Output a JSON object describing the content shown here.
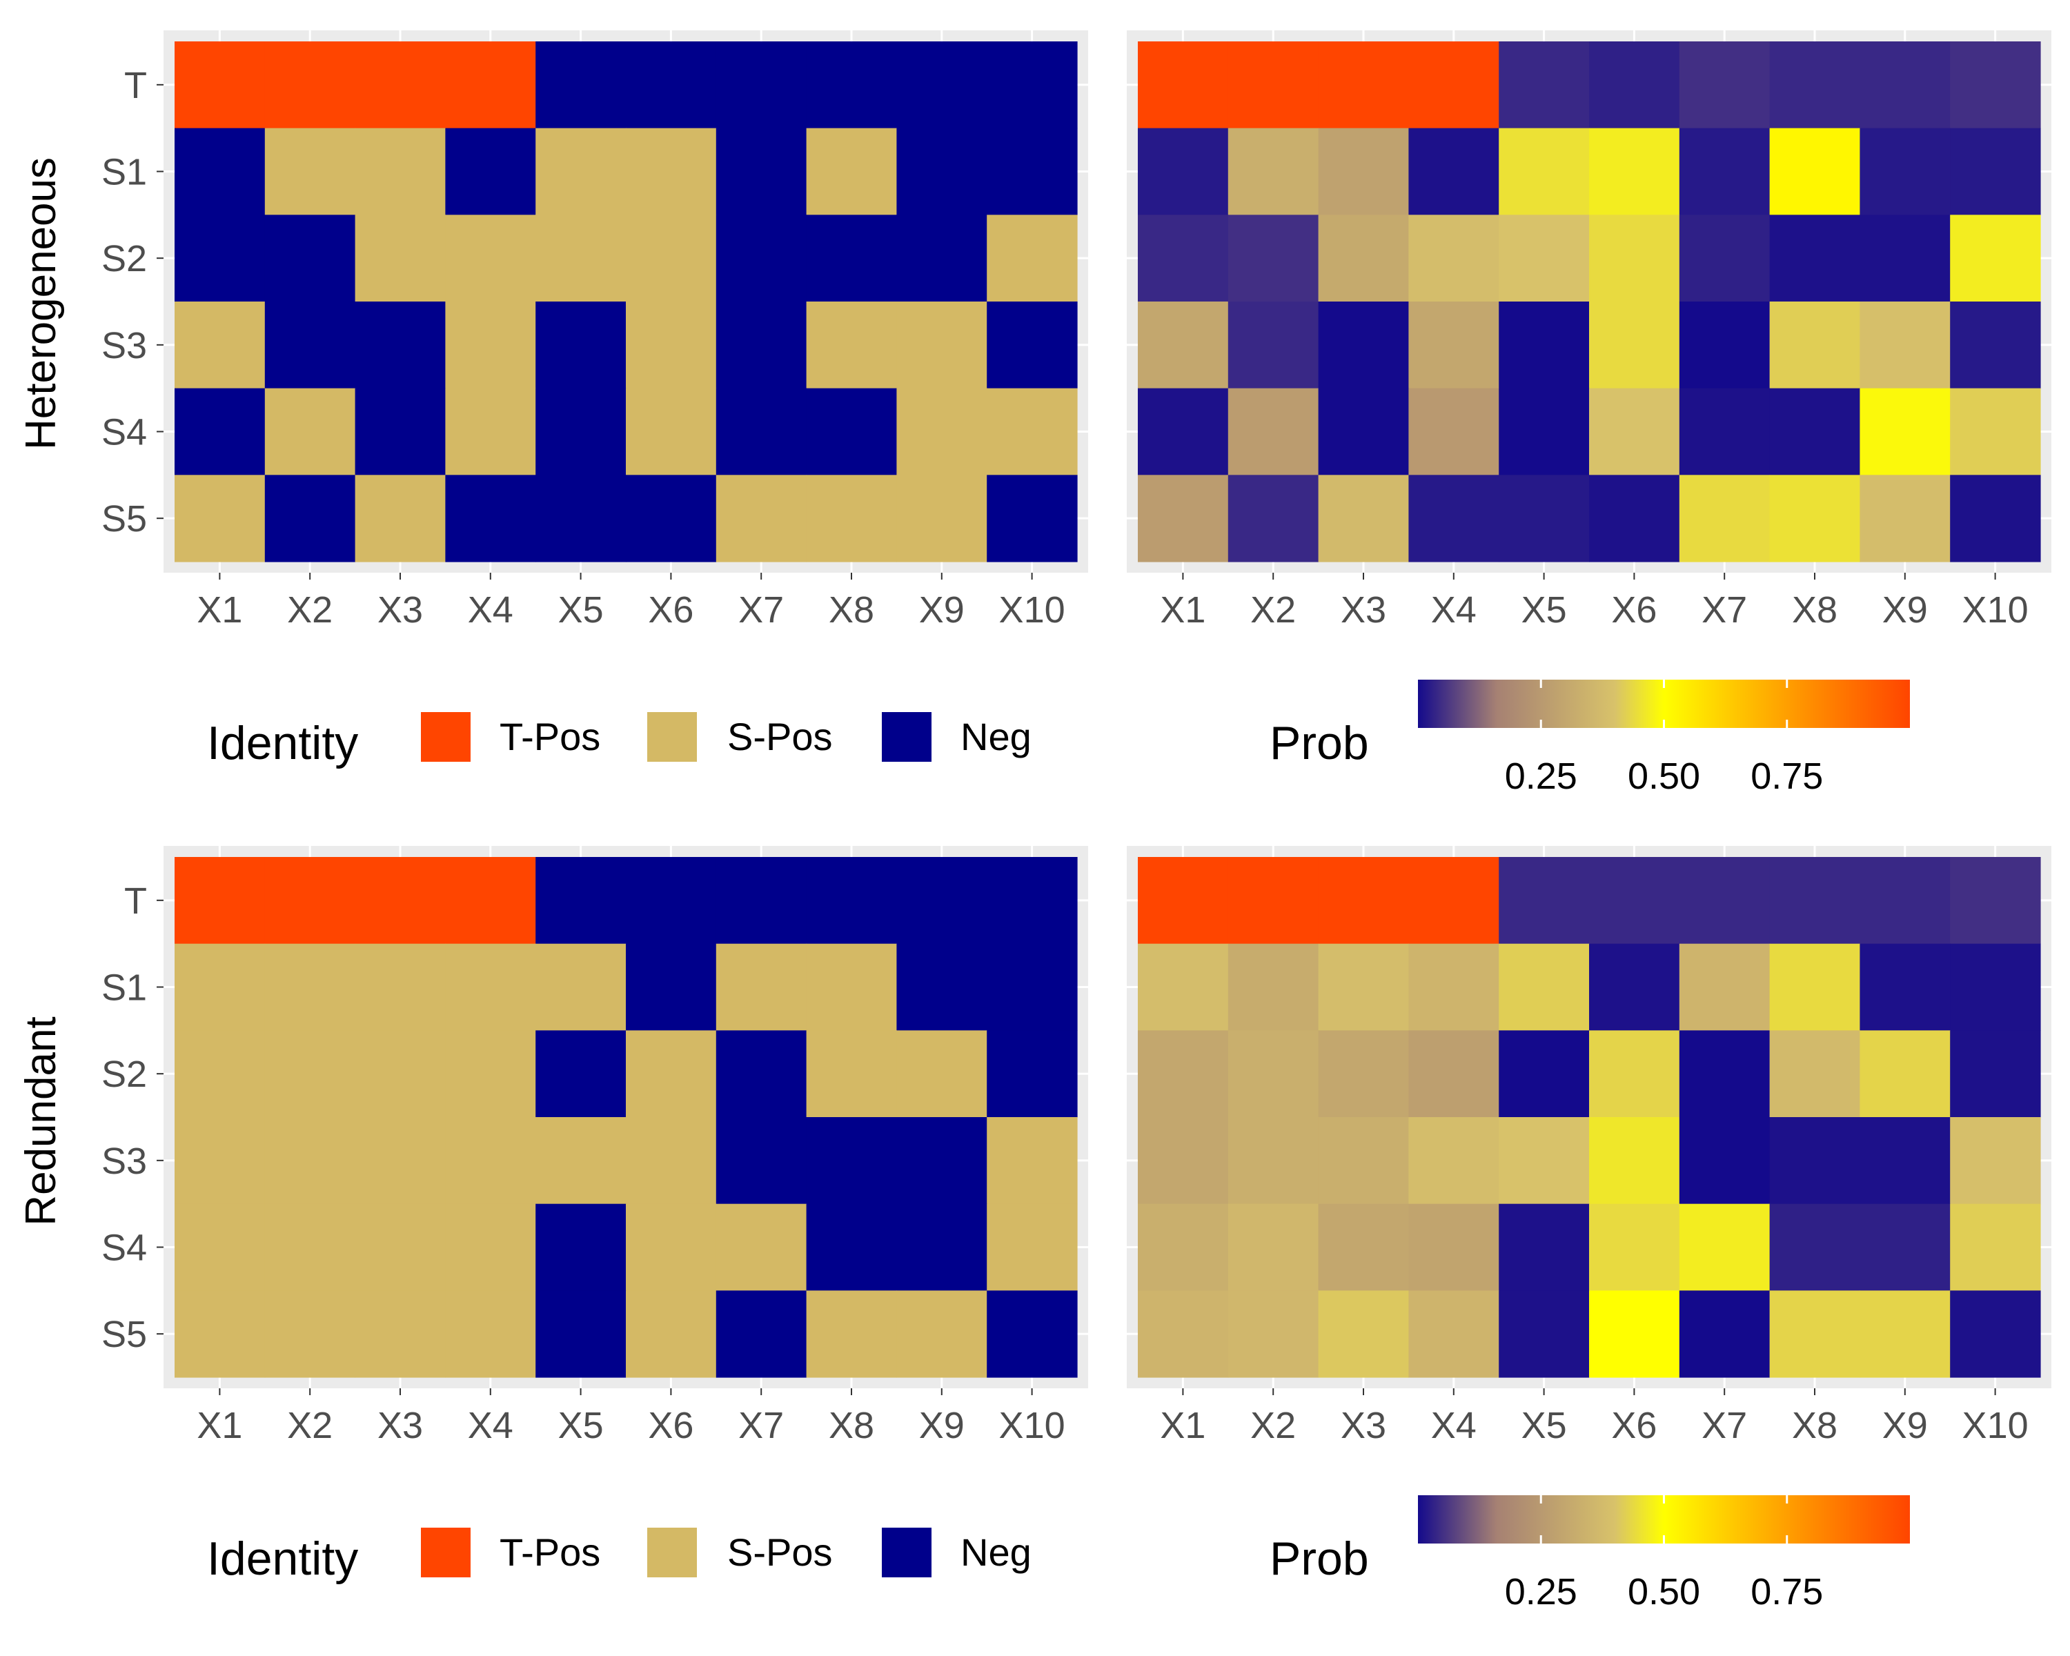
{
  "chart_data": [
    {
      "type": "heatmap",
      "row_group": "Heterogeneous",
      "fill": "Identity",
      "categories_x": [
        "X1",
        "X2",
        "X3",
        "X4",
        "X5",
        "X6",
        "X7",
        "X8",
        "X9",
        "X10"
      ],
      "categories_y": [
        "T",
        "S1",
        "S2",
        "S3",
        "S4",
        "S5"
      ],
      "values": [
        [
          "T-Pos",
          "T-Pos",
          "T-Pos",
          "T-Pos",
          "Neg",
          "Neg",
          "Neg",
          "Neg",
          "Neg",
          "Neg"
        ],
        [
          "Neg",
          "S-Pos",
          "S-Pos",
          "Neg",
          "S-Pos",
          "S-Pos",
          "Neg",
          "S-Pos",
          "Neg",
          "Neg"
        ],
        [
          "Neg",
          "Neg",
          "S-Pos",
          "S-Pos",
          "S-Pos",
          "S-Pos",
          "Neg",
          "Neg",
          "Neg",
          "S-Pos"
        ],
        [
          "S-Pos",
          "Neg",
          "Neg",
          "S-Pos",
          "Neg",
          "S-Pos",
          "Neg",
          "S-Pos",
          "S-Pos",
          "Neg"
        ],
        [
          "Neg",
          "S-Pos",
          "Neg",
          "S-Pos",
          "Neg",
          "S-Pos",
          "Neg",
          "Neg",
          "S-Pos",
          "S-Pos"
        ],
        [
          "S-Pos",
          "Neg",
          "S-Pos",
          "Neg",
          "Neg",
          "Neg",
          "S-Pos",
          "S-Pos",
          "S-Pos",
          "Neg"
        ]
      ],
      "legend": {
        "title": "Identity",
        "entries": [
          "T-Pos",
          "S-Pos",
          "Neg"
        ],
        "position": "bottom"
      }
    },
    {
      "type": "heatmap",
      "row_group": "Heterogeneous",
      "fill": "Prob",
      "categories_x": [
        "X1",
        "X2",
        "X3",
        "X4",
        "X5",
        "X6",
        "X7",
        "X8",
        "X9",
        "X10"
      ],
      "categories_y": [
        "T",
        "S1",
        "S2",
        "S3",
        "S4",
        "S5"
      ],
      "values": [
        [
          1.0,
          1.0,
          1.0,
          1.0,
          0.04,
          0.03,
          0.05,
          0.04,
          0.04,
          0.05
        ],
        [
          0.02,
          0.33,
          0.28,
          0.01,
          0.45,
          0.47,
          0.02,
          0.52,
          0.02,
          0.02
        ],
        [
          0.04,
          0.05,
          0.31,
          0.38,
          0.4,
          0.44,
          0.03,
          0.01,
          0.01,
          0.47
        ],
        [
          0.3,
          0.04,
          0.0,
          0.3,
          0.0,
          0.44,
          0.0,
          0.42,
          0.39,
          0.02
        ],
        [
          0.01,
          0.26,
          0.0,
          0.25,
          0.0,
          0.4,
          0.01,
          0.01,
          0.49,
          0.42
        ],
        [
          0.26,
          0.04,
          0.37,
          0.02,
          0.02,
          0.01,
          0.44,
          0.45,
          0.38,
          0.01
        ]
      ],
      "scale": {
        "min": 0.0,
        "max": 1.0,
        "breaks": [
          0.25,
          0.5,
          0.75
        ],
        "break_labels": [
          "0.25",
          "0.50",
          "0.75"
        ]
      },
      "legend": {
        "title": "Prob",
        "position": "bottom"
      }
    },
    {
      "type": "heatmap",
      "row_group": "Redundant",
      "fill": "Identity",
      "categories_x": [
        "X1",
        "X2",
        "X3",
        "X4",
        "X5",
        "X6",
        "X7",
        "X8",
        "X9",
        "X10"
      ],
      "categories_y": [
        "T",
        "S1",
        "S2",
        "S3",
        "S4",
        "S5"
      ],
      "values": [
        [
          "T-Pos",
          "T-Pos",
          "T-Pos",
          "T-Pos",
          "Neg",
          "Neg",
          "Neg",
          "Neg",
          "Neg",
          "Neg"
        ],
        [
          "S-Pos",
          "S-Pos",
          "S-Pos",
          "S-Pos",
          "S-Pos",
          "Neg",
          "S-Pos",
          "S-Pos",
          "Neg",
          "Neg"
        ],
        [
          "S-Pos",
          "S-Pos",
          "S-Pos",
          "S-Pos",
          "Neg",
          "S-Pos",
          "Neg",
          "S-Pos",
          "S-Pos",
          "Neg"
        ],
        [
          "S-Pos",
          "S-Pos",
          "S-Pos",
          "S-Pos",
          "S-Pos",
          "S-Pos",
          "Neg",
          "Neg",
          "Neg",
          "S-Pos"
        ],
        [
          "S-Pos",
          "S-Pos",
          "S-Pos",
          "S-Pos",
          "Neg",
          "S-Pos",
          "S-Pos",
          "Neg",
          "Neg",
          "S-Pos"
        ],
        [
          "S-Pos",
          "S-Pos",
          "S-Pos",
          "S-Pos",
          "Neg",
          "S-Pos",
          "Neg",
          "S-Pos",
          "S-Pos",
          "Neg"
        ]
      ],
      "legend": {
        "title": "Identity",
        "entries": [
          "T-Pos",
          "S-Pos",
          "Neg"
        ],
        "position": "bottom"
      }
    },
    {
      "type": "heatmap",
      "row_group": "Redundant",
      "fill": "Prob",
      "categories_x": [
        "X1",
        "X2",
        "X3",
        "X4",
        "X5",
        "X6",
        "X7",
        "X8",
        "X9",
        "X10"
      ],
      "categories_y": [
        "T",
        "S1",
        "S2",
        "S3",
        "S4",
        "S5"
      ],
      "values": [
        [
          1.0,
          1.0,
          1.0,
          1.0,
          0.04,
          0.04,
          0.04,
          0.04,
          0.04,
          0.05
        ],
        [
          0.38,
          0.32,
          0.38,
          0.35,
          0.42,
          0.01,
          0.35,
          0.44,
          0.01,
          0.01
        ],
        [
          0.3,
          0.33,
          0.3,
          0.27,
          0.0,
          0.43,
          0.0,
          0.37,
          0.43,
          0.01
        ],
        [
          0.3,
          0.33,
          0.33,
          0.38,
          0.4,
          0.46,
          0.0,
          0.01,
          0.01,
          0.39
        ],
        [
          0.33,
          0.36,
          0.3,
          0.29,
          0.01,
          0.44,
          0.47,
          0.03,
          0.03,
          0.42
        ],
        [
          0.35,
          0.36,
          0.41,
          0.35,
          0.01,
          0.5,
          0.0,
          0.43,
          0.43,
          0.01
        ]
      ],
      "scale": {
        "min": 0.0,
        "max": 1.0,
        "breaks": [
          0.25,
          0.5,
          0.75
        ],
        "break_labels": [
          "0.25",
          "0.50",
          "0.75"
        ]
      },
      "legend": {
        "title": "Prob",
        "position": "bottom"
      }
    }
  ],
  "row_labels": [
    "Heterogeneous",
    "Redundant"
  ],
  "colors": {
    "t_pos": "#ff4500",
    "s_pos": "#d4b965",
    "neg": "#00008b",
    "panel_bg": "#ebebeb",
    "axis_text": "#4d4d4d",
    "gradient_stops": [
      "#140a8c",
      "#a68173",
      "#d8c26a",
      "#ffff00",
      "#ffd000",
      "#ff8c00",
      "#ff4500"
    ]
  }
}
